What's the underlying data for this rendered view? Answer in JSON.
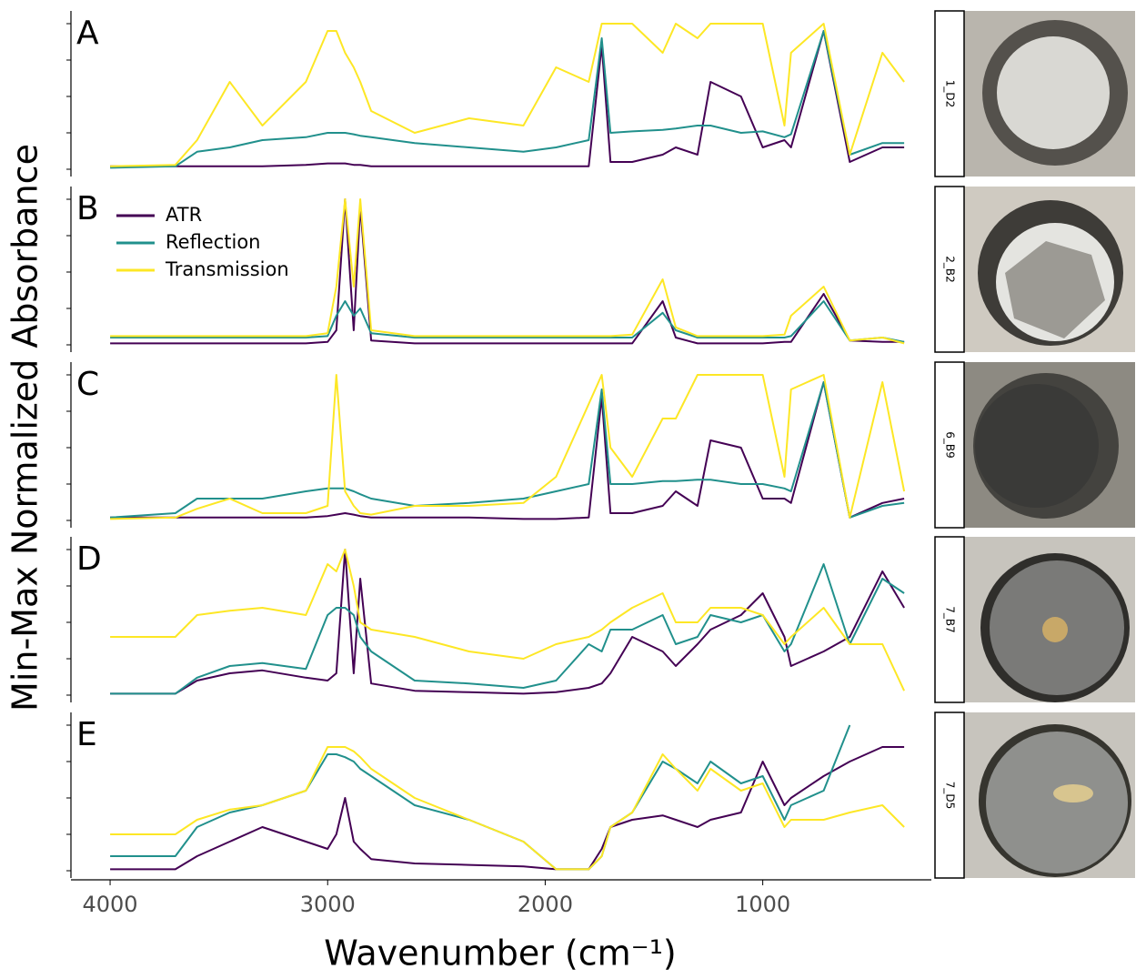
{
  "figure": {
    "xlabel": "Wavenumber (cm⁻¹)",
    "ylabel": "Min-Max Normalized Absorbance"
  },
  "chart_data": [
    {
      "type": "line",
      "panel_label": "A",
      "sample": "1_D2",
      "xlim": [
        4180,
        225
      ],
      "ylim": [
        0,
        1
      ],
      "yticks": [
        0,
        0.25,
        0.5,
        0.75,
        1
      ],
      "x": [
        4000,
        3700,
        3600,
        3450,
        3300,
        3100,
        3000,
        2960,
        2920,
        2880,
        2850,
        2800,
        2600,
        2350,
        2100,
        1950,
        1800,
        1740,
        1700,
        1600,
        1460,
        1400,
        1300,
        1240,
        1100,
        1000,
        900,
        870,
        720,
        600,
        450,
        350
      ],
      "series": [
        {
          "color": "#440154",
          "values": [
            0.02,
            0.02,
            0.02,
            0.02,
            0.02,
            0.03,
            0.04,
            0.04,
            0.04,
            0.03,
            0.03,
            0.02,
            0.02,
            0.02,
            0.02,
            0.02,
            0.02,
            0.85,
            0.05,
            0.05,
            0.1,
            0.15,
            0.1,
            0.6,
            0.5,
            0.15,
            0.2,
            0.15,
            0.95,
            0.05,
            0.15,
            0.15
          ]
        },
        {
          "color": "#21908c",
          "values": [
            0.01,
            0.02,
            0.12,
            0.15,
            0.2,
            0.22,
            0.25,
            0.25,
            0.25,
            0.24,
            0.23,
            0.22,
            0.18,
            0.15,
            0.12,
            0.15,
            0.2,
            0.9,
            0.25,
            0.26,
            0.27,
            0.28,
            0.3,
            0.3,
            0.25,
            0.26,
            0.22,
            0.24,
            0.95,
            0.1,
            0.18,
            0.18
          ]
        },
        {
          "color": "#fde725",
          "values": [
            0.02,
            0.03,
            0.2,
            0.6,
            0.3,
            0.6,
            0.95,
            0.95,
            0.8,
            0.7,
            0.6,
            0.4,
            0.25,
            0.35,
            0.3,
            0.7,
            0.6,
            1,
            1,
            1,
            0.8,
            1,
            0.9,
            1,
            1,
            1,
            0.3,
            0.8,
            1,
            0.1,
            0.8,
            0.6
          ]
        }
      ]
    },
    {
      "type": "line",
      "panel_label": "B",
      "sample": "2_B2",
      "xlim": [
        4180,
        225
      ],
      "ylim": [
        0,
        1
      ],
      "yticks": [
        0,
        0.25,
        0.5,
        0.75,
        1
      ],
      "legend": "top-left",
      "x": [
        4000,
        3700,
        3600,
        3450,
        3300,
        3100,
        3000,
        2960,
        2920,
        2880,
        2850,
        2800,
        2600,
        2350,
        2100,
        1950,
        1800,
        1740,
        1700,
        1600,
        1460,
        1400,
        1300,
        1240,
        1100,
        1000,
        900,
        870,
        720,
        600,
        450,
        350
      ],
      "series": [
        {
          "name": "ATR",
          "color": "#440154",
          "values": [
            0.01,
            0.01,
            0.01,
            0.01,
            0.01,
            0.01,
            0.02,
            0.1,
            1,
            0.1,
            0.95,
            0.03,
            0.01,
            0.01,
            0.01,
            0.01,
            0.01,
            0.01,
            0.01,
            0.01,
            0.3,
            0.05,
            0.01,
            0.01,
            0.01,
            0.01,
            0.02,
            0.02,
            0.35,
            0.03,
            0.02,
            0.02
          ]
        },
        {
          "name": "Reflection",
          "color": "#21908c",
          "values": [
            0.05,
            0.05,
            0.05,
            0.05,
            0.05,
            0.05,
            0.06,
            0.2,
            0.3,
            0.2,
            0.25,
            0.08,
            0.05,
            0.05,
            0.05,
            0.05,
            0.05,
            0.05,
            0.05,
            0.05,
            0.22,
            0.1,
            0.05,
            0.05,
            0.05,
            0.05,
            0.05,
            0.06,
            0.3,
            0.03,
            0.05,
            0.02
          ]
        },
        {
          "name": "Transmission",
          "color": "#fde725",
          "values": [
            0.06,
            0.06,
            0.06,
            0.06,
            0.06,
            0.06,
            0.08,
            0.4,
            1,
            0.4,
            1,
            0.1,
            0.06,
            0.06,
            0.06,
            0.06,
            0.06,
            0.06,
            0.06,
            0.07,
            0.45,
            0.12,
            0.06,
            0.06,
            0.06,
            0.06,
            0.07,
            0.2,
            0.4,
            0.03,
            0.05,
            0.01
          ]
        }
      ]
    },
    {
      "type": "line",
      "panel_label": "C",
      "sample": "6_B9",
      "xlim": [
        4180,
        225
      ],
      "ylim": [
        0,
        1
      ],
      "yticks": [
        0,
        0.25,
        0.5,
        0.75,
        1
      ],
      "x": [
        4000,
        3700,
        3600,
        3450,
        3300,
        3100,
        3000,
        2960,
        2920,
        2880,
        2850,
        2800,
        2600,
        2350,
        2100,
        1950,
        1800,
        1740,
        1700,
        1600,
        1460,
        1400,
        1300,
        1240,
        1100,
        1000,
        900,
        870,
        720,
        600,
        450,
        350
      ],
      "series": [
        {
          "color": "#440154",
          "values": [
            0.02,
            0.02,
            0.02,
            0.02,
            0.02,
            0.02,
            0.03,
            0.04,
            0.05,
            0.04,
            0.03,
            0.02,
            0.02,
            0.02,
            0.01,
            0.01,
            0.02,
            0.85,
            0.05,
            0.05,
            0.1,
            0.2,
            0.1,
            0.55,
            0.5,
            0.15,
            0.15,
            0.12,
            0.95,
            0.02,
            0.12,
            0.15
          ]
        },
        {
          "color": "#21908c",
          "values": [
            0.02,
            0.05,
            0.15,
            0.15,
            0.15,
            0.2,
            0.22,
            0.22,
            0.22,
            0.2,
            0.18,
            0.15,
            0.1,
            0.12,
            0.15,
            0.2,
            0.25,
            0.9,
            0.25,
            0.25,
            0.27,
            0.27,
            0.28,
            0.28,
            0.25,
            0.25,
            0.22,
            0.2,
            0.95,
            0.02,
            0.1,
            0.12
          ]
        },
        {
          "color": "#fde725",
          "values": [
            0.01,
            0.02,
            0.08,
            0.15,
            0.05,
            0.05,
            0.1,
            1,
            0.2,
            0.1,
            0.05,
            0.04,
            0.1,
            0.1,
            0.12,
            0.3,
            0.8,
            1,
            0.5,
            0.3,
            0.7,
            0.7,
            1,
            1,
            1,
            1,
            0.3,
            0.9,
            1,
            0.02,
            0.95,
            0.2
          ]
        }
      ]
    },
    {
      "type": "line",
      "panel_label": "D",
      "sample": "7_B7",
      "xlim": [
        4180,
        225
      ],
      "ylim": [
        0,
        1
      ],
      "yticks": [
        0,
        0.25,
        0.5,
        0.75,
        1
      ],
      "x": [
        4000,
        3700,
        3600,
        3450,
        3300,
        3100,
        3000,
        2960,
        2920,
        2880,
        2850,
        2800,
        2600,
        2350,
        2100,
        1950,
        1800,
        1740,
        1700,
        1600,
        1460,
        1400,
        1300,
        1240,
        1100,
        1000,
        900,
        870,
        720,
        600,
        450,
        350
      ],
      "series": [
        {
          "color": "#440154",
          "values": [
            0.01,
            0.01,
            0.1,
            0.15,
            0.17,
            0.12,
            0.1,
            0.15,
            1,
            0.15,
            0.8,
            0.08,
            0.03,
            0.02,
            0.01,
            0.02,
            0.05,
            0.08,
            0.15,
            0.4,
            0.3,
            0.2,
            0.35,
            0.45,
            0.55,
            0.7,
            0.4,
            0.2,
            0.3,
            0.4,
            0.85,
            0.6
          ]
        },
        {
          "color": "#21908c",
          "values": [
            0.01,
            0.01,
            0.12,
            0.2,
            0.22,
            0.18,
            0.55,
            0.6,
            0.6,
            0.55,
            0.4,
            0.3,
            0.1,
            0.08,
            0.05,
            0.1,
            0.35,
            0.3,
            0.45,
            0.45,
            0.55,
            0.35,
            0.4,
            0.55,
            0.5,
            0.55,
            0.3,
            0.35,
            0.9,
            0.35,
            0.8,
            0.7
          ]
        },
        {
          "color": "#fde725",
          "values": [
            0.4,
            0.4,
            0.55,
            0.58,
            0.6,
            0.55,
            0.9,
            0.85,
            1,
            0.75,
            0.5,
            0.45,
            0.4,
            0.3,
            0.25,
            0.35,
            0.4,
            0.45,
            0.5,
            0.6,
            0.7,
            0.5,
            0.5,
            0.6,
            0.6,
            0.55,
            0.35,
            0.4,
            0.6,
            0.35,
            0.35,
            0.03
          ]
        }
      ]
    },
    {
      "type": "line",
      "panel_label": "E",
      "sample": "7_D5",
      "xlim": [
        4180,
        225
      ],
      "ylim": [
        0,
        1
      ],
      "yticks": [
        0,
        0.25,
        0.5,
        0.75,
        1
      ],
      "xticks": [
        4000,
        3000,
        2000,
        1000
      ],
      "x": [
        4000,
        3700,
        3600,
        3450,
        3300,
        3100,
        3000,
        2960,
        2920,
        2880,
        2850,
        2800,
        2600,
        2350,
        2100,
        1950,
        1800,
        1740,
        1700,
        1600,
        1460,
        1400,
        1300,
        1240,
        1100,
        1000,
        900,
        870,
        720,
        600,
        450,
        350
      ],
      "series": [
        {
          "color": "#440154",
          "values": [
            0.01,
            0.01,
            0.1,
            0.2,
            0.3,
            0.2,
            0.15,
            0.25,
            0.5,
            0.2,
            0.15,
            0.08,
            0.05,
            0.04,
            0.03,
            0.01,
            0.01,
            0.15,
            0.3,
            0.35,
            0.38,
            0.35,
            0.3,
            0.35,
            0.4,
            0.75,
            0.45,
            0.5,
            0.65,
            0.75,
            0.85,
            0.85
          ]
        },
        {
          "color": "#21908c",
          "values": [
            0.1,
            0.1,
            0.3,
            0.4,
            0.45,
            0.55,
            0.8,
            0.8,
            0.78,
            0.75,
            0.7,
            0.65,
            0.45,
            0.35,
            0.2,
            0.01,
            0.01,
            0.1,
            0.3,
            0.4,
            0.75,
            0.7,
            0.6,
            0.75,
            0.6,
            0.65,
            0.35,
            0.45,
            0.55,
            1,
            null,
            null
          ]
        },
        {
          "color": "#fde725",
          "values": [
            0.25,
            0.25,
            0.35,
            0.42,
            0.45,
            0.55,
            0.85,
            0.85,
            0.85,
            0.82,
            0.78,
            0.7,
            0.5,
            0.35,
            0.2,
            0.01,
            0.01,
            0.1,
            0.3,
            0.4,
            0.8,
            0.7,
            0.55,
            0.7,
            0.55,
            0.6,
            0.3,
            0.35,
            0.35,
            0.4,
            0.45,
            0.3
          ]
        }
      ]
    }
  ]
}
